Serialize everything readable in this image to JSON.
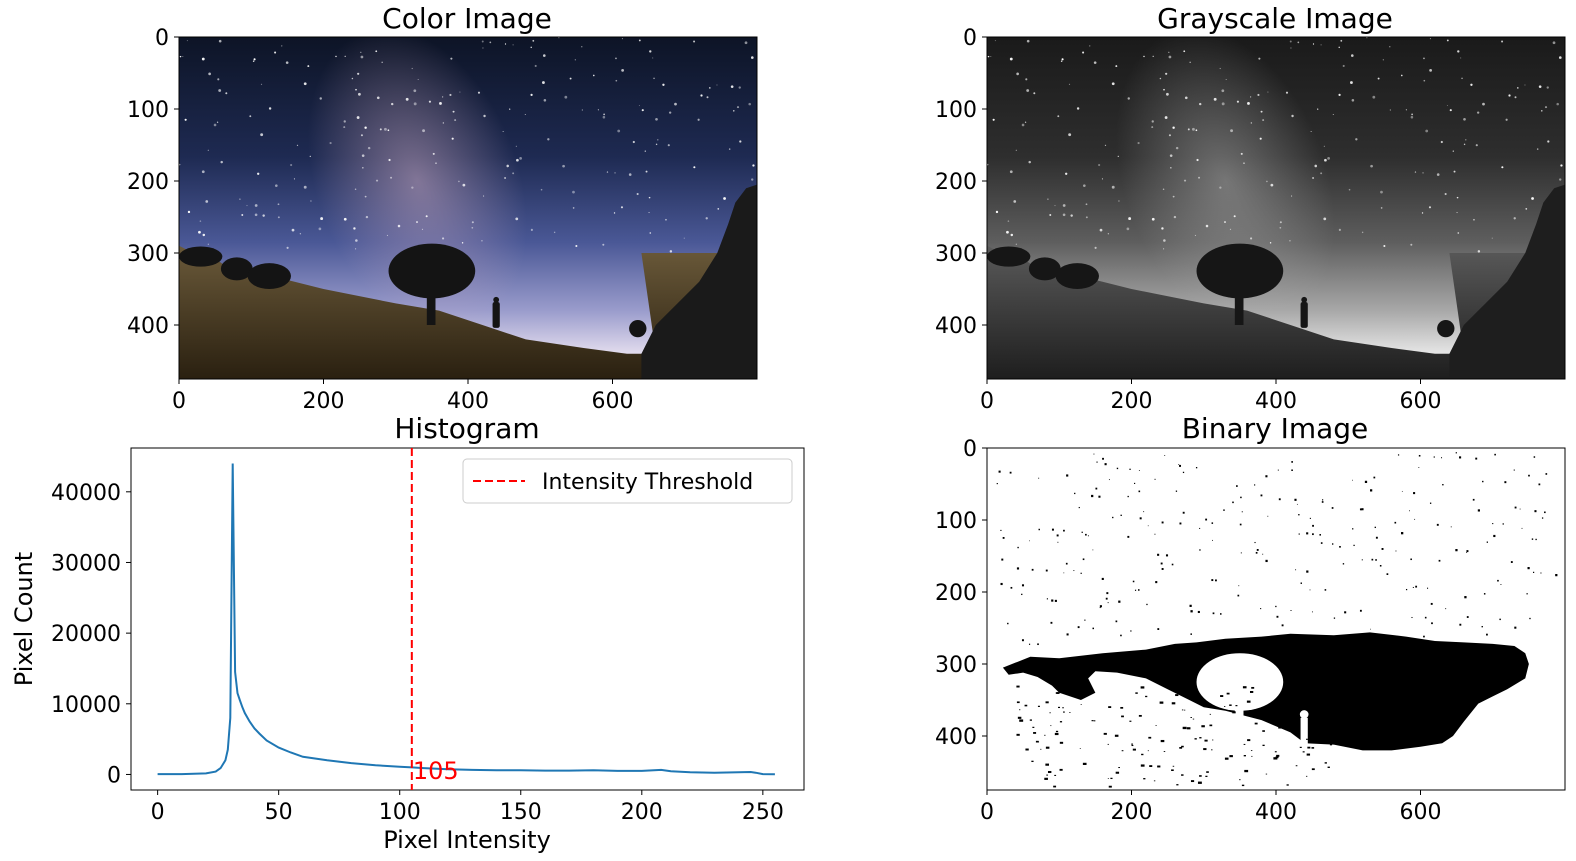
{
  "figure": {
    "panels": {
      "color": {
        "title": "Color Image"
      },
      "gray": {
        "title": "Grayscale Image"
      },
      "hist": {
        "title": "Histogram"
      },
      "binary": {
        "title": "Binary Image"
      }
    }
  },
  "chart_data": [
    {
      "type": "image",
      "title": "Color Image",
      "image_extent": {
        "width": 800,
        "height": 475
      },
      "xticks": [
        0,
        200,
        400,
        600
      ],
      "yticks": [
        0,
        100,
        200,
        300,
        400
      ],
      "style": "color"
    },
    {
      "type": "image",
      "title": "Grayscale Image",
      "image_extent": {
        "width": 800,
        "height": 475
      },
      "xticks": [
        0,
        200,
        400,
        600
      ],
      "yticks": [
        0,
        100,
        200,
        300,
        400
      ],
      "style": "gray"
    },
    {
      "type": "line",
      "title": "Histogram",
      "xlabel": "Pixel Intensity",
      "ylabel": "Pixel Count",
      "xlim": [
        -11,
        267
      ],
      "ylim": [
        -2200,
        46200
      ],
      "xticks": [
        0,
        50,
        100,
        150,
        200,
        250
      ],
      "yticks": [
        0,
        10000,
        20000,
        30000,
        40000
      ],
      "series": [
        {
          "color": "#1f77b4",
          "x": [
            0,
            10,
            20,
            24,
            26,
            28,
            29,
            30,
            31,
            32,
            33,
            34,
            35,
            36,
            38,
            40,
            42,
            45,
            50,
            55,
            60,
            70,
            80,
            90,
            100,
            105,
            110,
            120,
            130,
            140,
            150,
            160,
            170,
            180,
            190,
            200,
            205,
            208,
            212,
            220,
            230,
            240,
            245,
            247,
            250,
            255
          ],
          "y": [
            50,
            50,
            150,
            400,
            900,
            2000,
            3500,
            8000,
            44000,
            14500,
            11500,
            10500,
            9500,
            8700,
            7500,
            6500,
            5800,
            4800,
            3800,
            3100,
            2500,
            2000,
            1600,
            1300,
            1100,
            1000,
            900,
            750,
            650,
            600,
            600,
            550,
            550,
            600,
            500,
            500,
            600,
            650,
            450,
            300,
            250,
            300,
            350,
            250,
            50,
            30
          ]
        }
      ],
      "annotations": [
        {
          "type": "vline",
          "x": 105,
          "color": "#ff0000",
          "style": "dashed",
          "legend": "Intensity Threshold"
        },
        {
          "type": "text",
          "text": "105",
          "x": 105,
          "y": 500,
          "color": "#ff0000"
        }
      ],
      "legend": {
        "position": "top-right",
        "entries": [
          "Intensity Threshold"
        ]
      },
      "grid": false
    },
    {
      "type": "image",
      "title": "Binary Image",
      "image_extent": {
        "width": 800,
        "height": 475
      },
      "xticks": [
        0,
        200,
        400,
        600
      ],
      "yticks": [
        0,
        100,
        200,
        300,
        400
      ],
      "style": "binary"
    }
  ]
}
